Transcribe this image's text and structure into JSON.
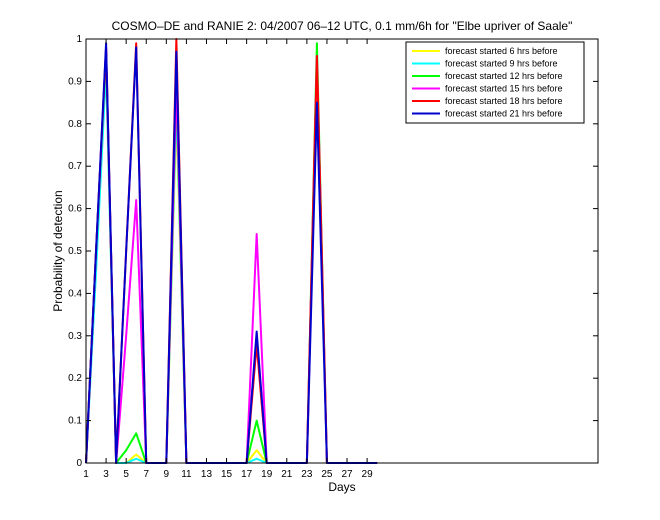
{
  "chart_data": {
    "type": "line",
    "title": "COSMO–DE and RANIE 2: 04/2007 06–12 UTC, 0.1 mm/6h for \"Elbe upriver of Saale\"",
    "xlabel": "Days",
    "ylabel": "Probability of detection",
    "xlim": [
      1,
      52
    ],
    "ylim": [
      0,
      1
    ],
    "xticks": [
      1,
      3,
      5,
      7,
      9,
      11,
      13,
      15,
      17,
      19,
      21,
      23,
      25,
      27,
      29
    ],
    "yticks": [
      0,
      0.1,
      0.2,
      0.3,
      0.4,
      0.5,
      0.6,
      0.7,
      0.8,
      0.9,
      1
    ],
    "legend_position": "top-right",
    "series": [
      {
        "name": "forecast started 6 hrs before",
        "color": "#ffff00",
        "x": [
          1,
          2,
          3,
          4,
          5,
          6,
          7,
          8,
          9,
          10,
          11,
          12,
          13,
          14,
          15,
          16,
          17,
          18,
          19,
          20,
          21,
          22,
          23,
          24,
          25,
          26,
          27,
          28,
          29,
          30
        ],
        "values": [
          0,
          0.5,
          0.95,
          0,
          0,
          0.02,
          0,
          0,
          0,
          0.82,
          0,
          0,
          0,
          0,
          0,
          0,
          0,
          0.03,
          0,
          0,
          0,
          0,
          0,
          null,
          0,
          0,
          0,
          0,
          0,
          0
        ]
      },
      {
        "name": "forecast started 9 hrs before",
        "color": "#00ffff",
        "x": [
          1,
          2,
          3,
          4,
          5,
          6,
          7,
          8,
          9,
          10,
          11,
          12,
          13,
          14,
          15,
          16,
          17,
          18,
          19,
          20,
          21,
          22,
          23,
          24,
          25,
          26,
          27,
          28,
          29,
          30
        ],
        "values": [
          0,
          0.45,
          0.93,
          0,
          0,
          0.01,
          0,
          0,
          0,
          0.85,
          0,
          0,
          0,
          0,
          0,
          0,
          0,
          0.01,
          0,
          0,
          0,
          0,
          0,
          null,
          0,
          0,
          0,
          0,
          0,
          0
        ]
      },
      {
        "name": "forecast started 12 hrs before",
        "color": "#00ff00",
        "x": [
          1,
          2,
          3,
          4,
          5,
          6,
          7,
          8,
          9,
          10,
          11,
          12,
          13,
          14,
          15,
          16,
          17,
          18,
          19,
          20,
          21,
          22,
          23,
          24,
          25,
          26,
          27,
          28,
          29,
          30
        ],
        "values": [
          0,
          0.5,
          0.97,
          0,
          0.03,
          0.07,
          0,
          0,
          0,
          0.88,
          0,
          0,
          0,
          0,
          0,
          0,
          0,
          0.1,
          0,
          0,
          0,
          0,
          0,
          0.99,
          0,
          0,
          0,
          0,
          0,
          0
        ]
      },
      {
        "name": "forecast started 15 hrs before",
        "color": "#ff00ff",
        "x": [
          1,
          2,
          3,
          4,
          5,
          6,
          7,
          8,
          9,
          10,
          11,
          12,
          13,
          14,
          15,
          16,
          17,
          18,
          19,
          20,
          21,
          22,
          23,
          24,
          25,
          26,
          27,
          28,
          29,
          30
        ],
        "values": [
          0,
          0.5,
          0.98,
          0,
          0.3,
          0.62,
          0,
          0,
          0,
          0.9,
          0,
          0,
          0,
          0,
          0,
          0,
          0,
          0.54,
          0,
          0,
          0,
          0,
          0,
          0.96,
          0,
          0,
          0,
          0,
          0,
          0
        ]
      },
      {
        "name": "forecast started 18 hrs before",
        "color": "#ff0000",
        "x": [
          1,
          2,
          3,
          4,
          5,
          6,
          7,
          8,
          9,
          10,
          11,
          12,
          13,
          14,
          15,
          16,
          17,
          18,
          19,
          20,
          21,
          22,
          23,
          24,
          25,
          26,
          27,
          28,
          29,
          30
        ],
        "values": [
          0,
          0.5,
          0.98,
          0,
          0.5,
          0.99,
          0,
          0,
          0,
          1.0,
          0,
          0,
          0,
          0,
          0,
          0,
          0,
          0.28,
          0,
          0,
          0,
          0,
          0,
          0.96,
          0,
          0,
          0,
          0,
          0,
          0
        ]
      },
      {
        "name": "forecast started 21 hrs before",
        "color": "#0000cc",
        "x": [
          1,
          2,
          3,
          4,
          5,
          6,
          7,
          8,
          9,
          10,
          11,
          12,
          13,
          14,
          15,
          16,
          17,
          18,
          19,
          20,
          21,
          22,
          23,
          24,
          25,
          26,
          27,
          28,
          29,
          30
        ],
        "values": [
          0,
          0.5,
          0.99,
          0,
          0.5,
          0.98,
          0,
          0,
          0,
          0.97,
          0,
          0,
          0,
          0,
          0,
          0,
          0,
          0.31,
          0,
          0,
          0,
          0,
          0,
          0.85,
          0,
          0,
          0,
          0,
          0,
          0
        ]
      }
    ]
  }
}
